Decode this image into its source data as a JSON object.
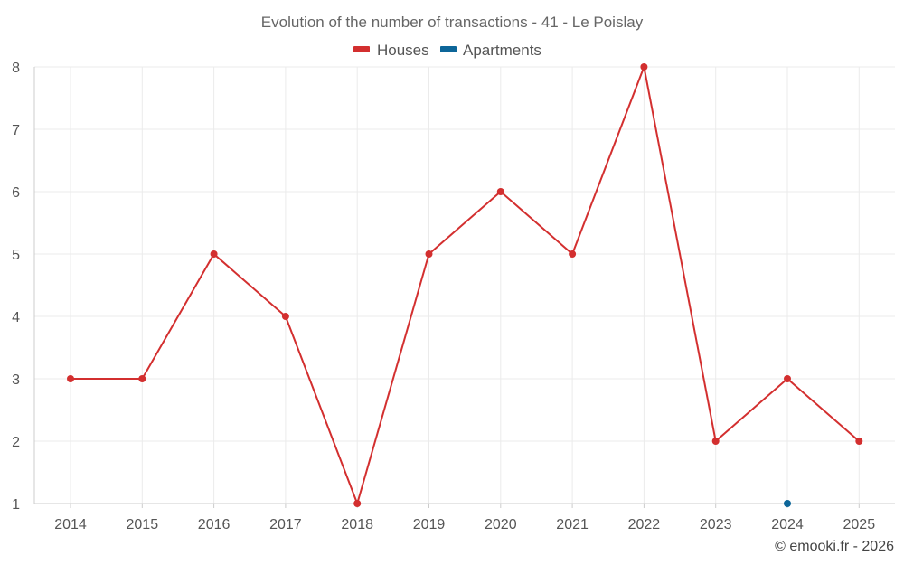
{
  "chart_data": {
    "type": "line",
    "title": "Evolution of the number of transactions - 41 - Le Poislay",
    "x": [
      "2014",
      "2015",
      "2016",
      "2017",
      "2018",
      "2019",
      "2020",
      "2021",
      "2022",
      "2023",
      "2024",
      "2025"
    ],
    "series": [
      {
        "name": "Houses",
        "color": "#d32f2f",
        "values": [
          3,
          3,
          5,
          4,
          1,
          5,
          6,
          5,
          8,
          2,
          3,
          2
        ]
      },
      {
        "name": "Apartments",
        "color": "#0d6699",
        "values": [
          null,
          null,
          null,
          null,
          null,
          null,
          null,
          null,
          null,
          null,
          1,
          null
        ]
      }
    ],
    "ylim": [
      1,
      8
    ],
    "yticks": [
      "1",
      "2",
      "3",
      "4",
      "5",
      "6",
      "7",
      "8"
    ],
    "xlabel": "",
    "ylabel": "",
    "grid": true,
    "legend_position": "top-center"
  },
  "credit": "© emooki.fr - 2026"
}
